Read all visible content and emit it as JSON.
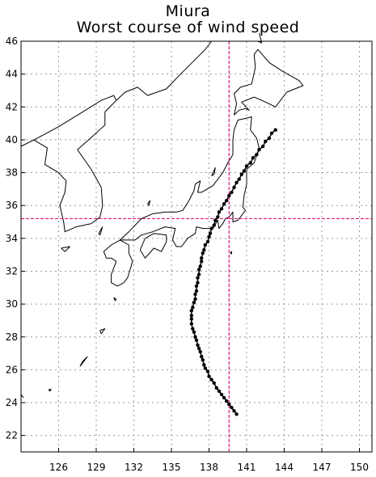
{
  "title": [
    "Miura",
    "Worst course of wind speed"
  ],
  "axes": {
    "lon_range": [
      123.0,
      151.0
    ],
    "lat_range": [
      21.0,
      46.0
    ],
    "x_ticks": [
      126,
      129,
      132,
      135,
      138,
      141,
      144,
      147,
      150
    ],
    "y_ticks": [
      22,
      24,
      26,
      28,
      30,
      32,
      34,
      36,
      38,
      40,
      42,
      44,
      46
    ],
    "grid": "dotted"
  },
  "reference_point": {
    "lon": 139.6,
    "lat": 35.2,
    "color": "#e0137f"
  },
  "track_color": "#000000",
  "track": [
    [
      140.2,
      23.3
    ],
    [
      140.0,
      23.5
    ],
    [
      139.8,
      23.7
    ],
    [
      139.6,
      23.9
    ],
    [
      139.4,
      24.1
    ],
    [
      139.2,
      24.3
    ],
    [
      139.0,
      24.5
    ],
    [
      138.8,
      24.7
    ],
    [
      138.6,
      24.9
    ],
    [
      138.4,
      25.2
    ],
    [
      138.2,
      25.4
    ],
    [
      138.0,
      25.6
    ],
    [
      137.9,
      25.9
    ],
    [
      137.7,
      26.1
    ],
    [
      137.6,
      26.3
    ],
    [
      137.5,
      26.6
    ],
    [
      137.4,
      26.8
    ],
    [
      137.3,
      27.1
    ],
    [
      137.2,
      27.3
    ],
    [
      137.1,
      27.5
    ],
    [
      137.0,
      27.8
    ],
    [
      136.9,
      28.0
    ],
    [
      136.8,
      28.3
    ],
    [
      136.7,
      28.5
    ],
    [
      136.6,
      28.8
    ],
    [
      136.6,
      29.1
    ],
    [
      136.6,
      29.3
    ],
    [
      136.6,
      29.6
    ],
    [
      136.7,
      29.8
    ],
    [
      136.8,
      30.1
    ],
    [
      136.9,
      30.3
    ],
    [
      136.9,
      30.6
    ],
    [
      137.0,
      30.8
    ],
    [
      137.0,
      31.1
    ],
    [
      137.1,
      31.3
    ],
    [
      137.1,
      31.6
    ],
    [
      137.2,
      31.8
    ],
    [
      137.2,
      32.1
    ],
    [
      137.3,
      32.3
    ],
    [
      137.4,
      32.6
    ],
    [
      137.4,
      32.8
    ],
    [
      137.5,
      33.1
    ],
    [
      137.6,
      33.3
    ],
    [
      137.7,
      33.6
    ],
    [
      137.9,
      33.8
    ],
    [
      138.0,
      34.1
    ],
    [
      138.1,
      34.3
    ],
    [
      138.2,
      34.6
    ],
    [
      138.4,
      34.8
    ],
    [
      138.5,
      35.1
    ],
    [
      138.7,
      35.3
    ],
    [
      138.8,
      35.6
    ],
    [
      139.0,
      35.8
    ],
    [
      139.2,
      36.1
    ],
    [
      139.4,
      36.3
    ],
    [
      139.6,
      36.6
    ],
    [
      139.8,
      36.8
    ],
    [
      140.0,
      37.1
    ],
    [
      140.2,
      37.4
    ],
    [
      140.4,
      37.6
    ],
    [
      140.6,
      37.9
    ],
    [
      140.8,
      38.1
    ],
    [
      141.0,
      38.4
    ],
    [
      141.3,
      38.6
    ],
    [
      141.5,
      38.9
    ],
    [
      141.8,
      39.1
    ],
    [
      142.0,
      39.4
    ],
    [
      142.3,
      39.6
    ],
    [
      142.5,
      39.9
    ],
    [
      142.8,
      40.1
    ],
    [
      143.0,
      40.4
    ],
    [
      143.3,
      40.6
    ]
  ],
  "coastlines": [
    {
      "name": "honshu",
      "points": [
        [
          130.9,
          33.9
        ],
        [
          131.6,
          34.4
        ],
        [
          132.6,
          35.2
        ],
        [
          133.5,
          35.5
        ],
        [
          134.5,
          35.6
        ],
        [
          135.4,
          35.6
        ],
        [
          135.9,
          35.7
        ],
        [
          136.4,
          36.3
        ],
        [
          136.8,
          36.9
        ],
        [
          136.9,
          37.3
        ],
        [
          137.3,
          37.5
        ],
        [
          137.1,
          36.8
        ],
        [
          137.4,
          36.8
        ],
        [
          138.3,
          37.2
        ],
        [
          139.1,
          38.0
        ],
        [
          139.5,
          38.6
        ],
        [
          139.9,
          39.1
        ],
        [
          139.9,
          40.0
        ],
        [
          140.0,
          40.6
        ],
        [
          140.3,
          41.2
        ],
        [
          140.9,
          41.3
        ],
        [
          141.4,
          41.4
        ],
        [
          141.3,
          40.6
        ],
        [
          141.8,
          40.1
        ],
        [
          142.0,
          39.5
        ],
        [
          141.6,
          38.6
        ],
        [
          141.0,
          38.2
        ],
        [
          141.0,
          37.3
        ],
        [
          140.8,
          36.6
        ],
        [
          140.7,
          35.9
        ],
        [
          140.9,
          35.7
        ],
        [
          140.3,
          35.1
        ],
        [
          139.9,
          35.0
        ],
        [
          139.9,
          35.6
        ],
        [
          139.6,
          35.3
        ],
        [
          139.3,
          35.2
        ],
        [
          139.1,
          34.9
        ],
        [
          138.8,
          34.6
        ],
        [
          138.7,
          35.1
        ],
        [
          138.3,
          34.6
        ],
        [
          137.5,
          34.6
        ],
        [
          137.0,
          34.7
        ],
        [
          136.9,
          34.3
        ],
        [
          136.3,
          34.0
        ],
        [
          135.8,
          33.5
        ],
        [
          135.4,
          33.5
        ],
        [
          135.1,
          33.9
        ],
        [
          135.3,
          34.6
        ],
        [
          134.5,
          34.7
        ],
        [
          133.5,
          34.4
        ],
        [
          132.6,
          34.2
        ],
        [
          132.1,
          33.9
        ],
        [
          131.2,
          33.9
        ],
        [
          130.9,
          33.9
        ]
      ]
    },
    {
      "name": "kyushu",
      "points": [
        [
          130.9,
          33.9
        ],
        [
          131.6,
          33.6
        ],
        [
          131.6,
          33.1
        ],
        [
          131.9,
          32.6
        ],
        [
          131.5,
          31.6
        ],
        [
          131.2,
          31.3
        ],
        [
          130.7,
          31.1
        ],
        [
          130.2,
          31.3
        ],
        [
          130.2,
          31.8
        ],
        [
          130.6,
          32.6
        ],
        [
          130.2,
          32.8
        ],
        [
          129.8,
          32.8
        ],
        [
          129.6,
          33.2
        ],
        [
          130.2,
          33.6
        ],
        [
          130.9,
          33.9
        ]
      ]
    },
    {
      "name": "shikoku",
      "points": [
        [
          132.5,
          33.3
        ],
        [
          132.9,
          34.0
        ],
        [
          133.6,
          34.3
        ],
        [
          134.6,
          34.2
        ],
        [
          134.6,
          33.8
        ],
        [
          134.2,
          33.2
        ],
        [
          133.6,
          33.4
        ],
        [
          132.9,
          32.8
        ],
        [
          132.5,
          33.3
        ]
      ]
    },
    {
      "name": "hokkaido",
      "points": [
        [
          140.0,
          41.5
        ],
        [
          140.4,
          41.8
        ],
        [
          140.9,
          41.9
        ],
        [
          141.2,
          41.8
        ],
        [
          140.6,
          42.3
        ],
        [
          141.6,
          42.6
        ],
        [
          142.5,
          42.3
        ],
        [
          143.3,
          42.0
        ],
        [
          144.2,
          42.9
        ],
        [
          145.5,
          43.3
        ],
        [
          145.2,
          43.6
        ],
        [
          144.5,
          43.9
        ],
        [
          143.8,
          44.2
        ],
        [
          142.8,
          44.7
        ],
        [
          141.9,
          45.5
        ],
        [
          141.6,
          45.2
        ],
        [
          141.7,
          44.4
        ],
        [
          141.4,
          43.4
        ],
        [
          140.5,
          43.2
        ],
        [
          140.0,
          42.8
        ],
        [
          140.2,
          42.2
        ],
        [
          140.0,
          41.5
        ]
      ]
    },
    {
      "name": "sakhalin",
      "points": [
        [
          141.9,
          46.0
        ],
        [
          142.2,
          45.9
        ],
        [
          142.0,
          46.5
        ]
      ]
    },
    {
      "name": "sado",
      "points": [
        [
          138.2,
          37.8
        ],
        [
          138.5,
          38.3
        ],
        [
          138.4,
          37.9
        ],
        [
          138.2,
          37.8
        ]
      ]
    },
    {
      "name": "oki",
      "points": [
        [
          133.1,
          36.1
        ],
        [
          133.3,
          36.3
        ],
        [
          133.2,
          36.0
        ],
        [
          133.1,
          36.1
        ]
      ]
    },
    {
      "name": "tsushima",
      "points": [
        [
          129.3,
          34.2
        ],
        [
          129.5,
          34.7
        ],
        [
          129.2,
          34.3
        ],
        [
          129.3,
          34.2
        ]
      ]
    },
    {
      "name": "jeju",
      "points": [
        [
          126.2,
          33.4
        ],
        [
          126.9,
          33.5
        ],
        [
          126.5,
          33.2
        ],
        [
          126.2,
          33.4
        ]
      ]
    },
    {
      "name": "korea",
      "points": [
        [
          124.0,
          40.0
        ],
        [
          125.1,
          39.5
        ],
        [
          124.9,
          38.5
        ],
        [
          126.0,
          38.0
        ],
        [
          126.6,
          37.5
        ],
        [
          126.5,
          36.8
        ],
        [
          126.1,
          36.0
        ],
        [
          126.4,
          35.0
        ],
        [
          126.5,
          34.4
        ],
        [
          127.4,
          34.7
        ],
        [
          128.6,
          34.9
        ],
        [
          129.3,
          35.3
        ],
        [
          129.5,
          36.0
        ],
        [
          129.4,
          37.1
        ],
        [
          128.6,
          38.2
        ],
        [
          127.5,
          39.4
        ],
        [
          128.4,
          40.0
        ],
        [
          129.7,
          40.9
        ],
        [
          129.7,
          41.7
        ],
        [
          130.6,
          42.4
        ],
        [
          130.4,
          42.7
        ],
        [
          129.4,
          42.4
        ],
        [
          127.5,
          41.5
        ],
        [
          126.0,
          40.8
        ],
        [
          124.3,
          40.1
        ],
        [
          123.0,
          39.6
        ]
      ]
    },
    {
      "name": "primorye",
      "points": [
        [
          130.6,
          42.4
        ],
        [
          131.3,
          42.9
        ],
        [
          132.3,
          43.2
        ],
        [
          133.1,
          42.7
        ],
        [
          134.6,
          43.1
        ],
        [
          135.6,
          43.9
        ],
        [
          137.7,
          45.5
        ],
        [
          138.2,
          46.0
        ]
      ]
    },
    {
      "name": "yakushima",
      "points": [
        [
          130.4,
          30.4
        ],
        [
          130.6,
          30.3
        ],
        [
          130.5,
          30.2
        ],
        [
          130.4,
          30.4
        ]
      ]
    },
    {
      "name": "amami",
      "points": [
        [
          129.3,
          28.4
        ],
        [
          129.7,
          28.5
        ],
        [
          129.4,
          28.2
        ],
        [
          129.3,
          28.4
        ]
      ]
    },
    {
      "name": "okinawa",
      "points": [
        [
          127.7,
          26.2
        ],
        [
          128.3,
          26.8
        ],
        [
          127.9,
          26.5
        ],
        [
          127.7,
          26.2
        ]
      ]
    },
    {
      "name": "miyako",
      "points": [
        [
          125.2,
          24.8
        ],
        [
          125.4,
          24.8
        ],
        [
          125.3,
          24.7
        ],
        [
          125.2,
          24.8
        ]
      ]
    },
    {
      "name": "taiwan-tip",
      "points": [
        [
          123.0,
          24.5
        ],
        [
          123.2,
          24.3
        ]
      ]
    },
    {
      "name": "hachijo",
      "points": [
        [
          139.7,
          33.1
        ],
        [
          139.8,
          33.2
        ],
        [
          139.8,
          33.05
        ],
        [
          139.7,
          33.1
        ]
      ]
    }
  ]
}
